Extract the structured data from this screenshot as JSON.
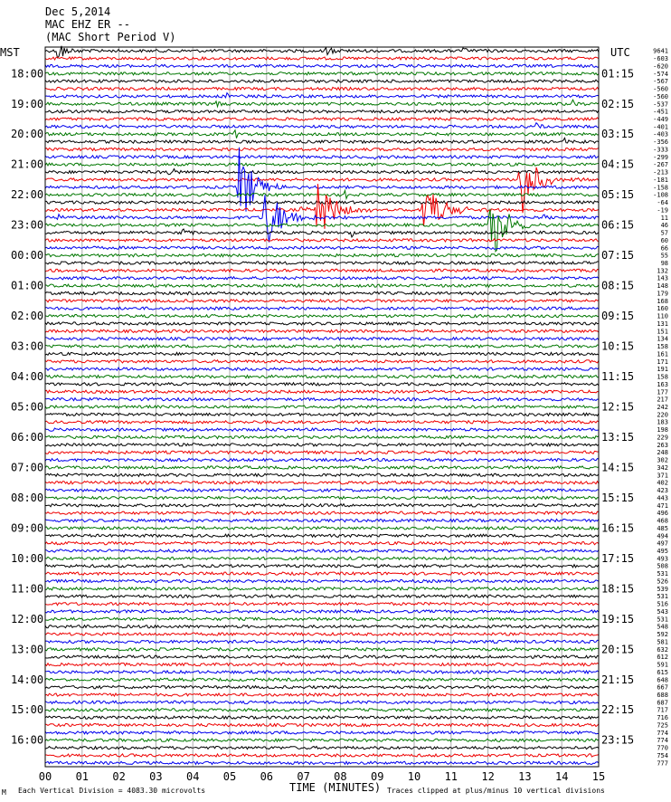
{
  "header": {
    "date": "Dec 5,2014",
    "station": "MAC EHZ ER --",
    "instrument": "(MAC Short Period V)"
  },
  "axes": {
    "left_tz": "MST",
    "right_tz": "UTC",
    "xlabel": "TIME (MINUTES)"
  },
  "footer": {
    "division": "Each Vertical Division = 4083.30 microvolts",
    "clip": "Traces clipped at plus/minus 10 vertical divisions",
    "logo": "M"
  },
  "colors": {
    "trace_cycle": [
      "#000000",
      "#ee0000",
      "#0000ee",
      "#007700"
    ],
    "grid": "#aaaaaa",
    "frame": "#000000"
  },
  "chart_data": {
    "type": "line",
    "title": "",
    "traces_per_hour": 4,
    "minutes_per_trace": 15,
    "x_ticks": [
      "00",
      "01",
      "02",
      "03",
      "04",
      "05",
      "06",
      "07",
      "08",
      "09",
      "10",
      "11",
      "12",
      "13",
      "14",
      "15"
    ],
    "left_hours": [
      "18:00",
      "19:00",
      "20:00",
      "21:00",
      "22:00",
      "23:00",
      "00:00",
      "01:00",
      "02:00",
      "03:00",
      "04:00",
      "05:00",
      "06:00",
      "07:00",
      "08:00",
      "09:00",
      "10:00",
      "11:00",
      "12:00",
      "13:00",
      "14:00",
      "15:00",
      "16:00"
    ],
    "right_hours": [
      "01:15",
      "02:15",
      "03:15",
      "04:15",
      "05:15",
      "06:15",
      "07:15",
      "08:15",
      "09:15",
      "10:15",
      "11:15",
      "12:15",
      "13:15",
      "14:15",
      "15:15",
      "16:15",
      "17:15",
      "18:15",
      "19:15",
      "20:15",
      "21:15",
      "22:15",
      "23:15"
    ],
    "right_values": [
      "9641",
      "-603",
      "-620",
      "-574",
      "-567",
      "-560",
      "-560",
      "-537",
      "-451",
      "-449",
      "-401",
      "-403",
      "-356",
      "-333",
      "-299",
      "-267",
      "-213",
      "-181",
      "-158",
      "-108",
      "-64",
      "-19",
      "11",
      "46",
      "57",
      "60",
      "66",
      "55",
      "98",
      "132",
      "143",
      "148",
      "179",
      "168",
      "160",
      "110",
      "131",
      "151",
      "134",
      "158",
      "161",
      "171",
      "191",
      "158",
      "163",
      "177",
      "217",
      "242",
      "220",
      "183",
      "198",
      "229",
      "263",
      "248",
      "302",
      "342",
      "371",
      "402",
      "423",
      "443",
      "471",
      "496",
      "468",
      "485",
      "494",
      "497",
      "495",
      "493",
      "508",
      "531",
      "526",
      "539",
      "531",
      "516",
      "543",
      "531",
      "548",
      "592",
      "581",
      "632",
      "612",
      "591",
      "615",
      "648",
      "667",
      "688",
      "687",
      "717",
      "716",
      "725",
      "774",
      "774",
      "770",
      "754",
      "777"
    ],
    "events": [
      {
        "trace": 0,
        "minute": 0.3,
        "color": "blue",
        "amp": 3.5,
        "dur": 0.6
      },
      {
        "trace": 0,
        "minute": 7.6,
        "color": "red",
        "amp": 2.2,
        "dur": 0.4
      },
      {
        "trace": 0,
        "minute": 11.3,
        "color": "black",
        "amp": 1.2,
        "dur": 0.3
      },
      {
        "trace": 6,
        "minute": 4.9,
        "color": "blue",
        "amp": 1.3,
        "dur": 0.4
      },
      {
        "trace": 7,
        "minute": 4.6,
        "color": "red",
        "amp": 1.2,
        "dur": 0.4
      },
      {
        "trace": 7,
        "minute": 14.3,
        "color": "black",
        "amp": 1.3,
        "dur": 0.3
      },
      {
        "trace": 10,
        "minute": 13.3,
        "color": "green",
        "amp": 1.3,
        "dur": 0.4
      },
      {
        "trace": 11,
        "minute": 5.1,
        "color": "green",
        "amp": 1.3,
        "dur": 0.4
      },
      {
        "trace": 12,
        "minute": 14.0,
        "color": "blue",
        "amp": 1.5,
        "dur": 0.4
      },
      {
        "trace": 14,
        "minute": 8.9,
        "color": "black",
        "amp": 1.4,
        "dur": 0.4
      },
      {
        "trace": 16,
        "minute": 3.3,
        "color": "blue",
        "amp": 1.6,
        "dur": 0.5
      },
      {
        "trace": 17,
        "minute": 12.8,
        "color": "blue",
        "amp": 12,
        "dur": 1.1
      },
      {
        "trace": 18,
        "minute": 5.2,
        "color": "red",
        "amp": 12,
        "dur": 1.1
      },
      {
        "trace": 19,
        "minute": 8.1,
        "color": "green",
        "amp": 1.2,
        "dur": 0.4
      },
      {
        "trace": 21,
        "minute": 6.9,
        "color": "green",
        "amp": 1.0,
        "dur": 0.6
      },
      {
        "trace": 21,
        "minute": 7.3,
        "color": "blue",
        "amp": 9,
        "dur": 1.3
      },
      {
        "trace": 21,
        "minute": 10.2,
        "color": "blue",
        "amp": 9,
        "dur": 1.3
      },
      {
        "trace": 22,
        "minute": 5.9,
        "color": "blue",
        "amp": 9,
        "dur": 1.4
      },
      {
        "trace": 22,
        "minute": 0.3,
        "color": "red",
        "amp": 1.4,
        "dur": 0.4
      },
      {
        "trace": 22,
        "minute": 13.4,
        "color": "red",
        "amp": 1.3,
        "dur": 0.4
      },
      {
        "trace": 23,
        "minute": 12.0,
        "color": "green",
        "amp": 11,
        "dur": 1.2
      },
      {
        "trace": 24,
        "minute": 3.7,
        "color": "black",
        "amp": 1.2,
        "dur": 0.4
      },
      {
        "trace": 24,
        "minute": 8.3,
        "color": "black",
        "amp": 1.3,
        "dur": 0.4
      }
    ]
  }
}
